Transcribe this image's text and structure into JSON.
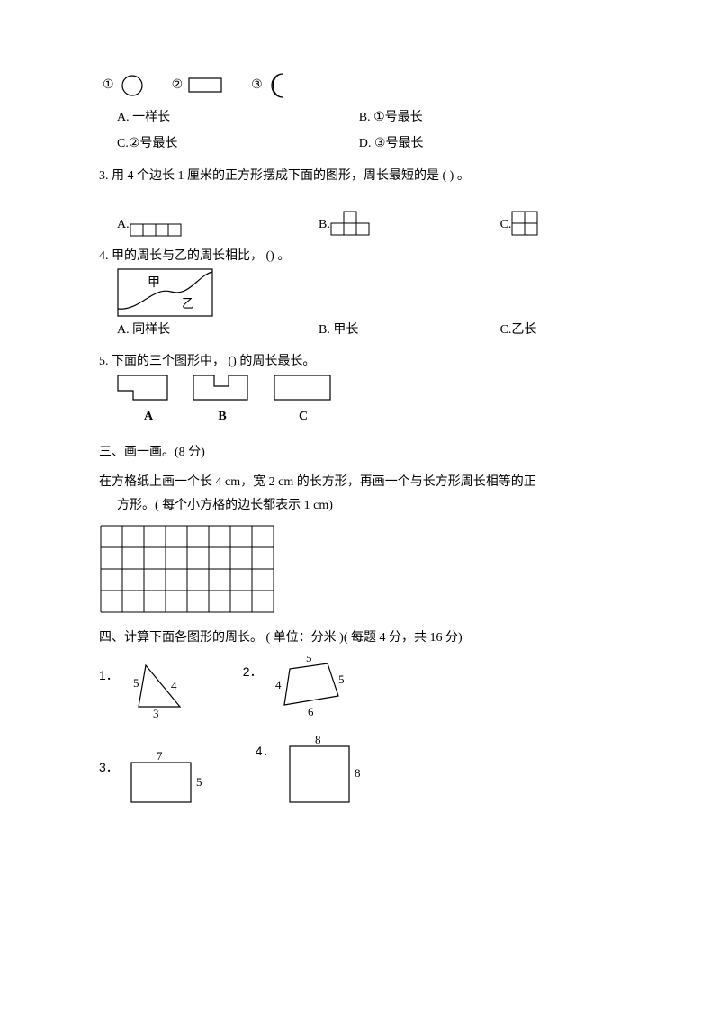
{
  "colors": {
    "ink": "#000000",
    "bg": "#ffffff"
  },
  "shapes_row": {
    "l1": "①",
    "l2": "②",
    "l3": "③"
  },
  "q2_opts": {
    "A": "A. 一样长",
    "B": "B. ①号最长",
    "C": "C.②号最长",
    "D": "D. ③号最长"
  },
  "q3": {
    "text": "3. 用 4 个边长 1 厘米的正方形摆成下面的图形，周长最短的是    (       ) 。",
    "A": "A.",
    "B": "B.",
    "C": "C."
  },
  "q4": {
    "text": "4. 甲的周长与乙的周长相比， () 。",
    "jia": "甲",
    "yi": "乙",
    "A": "A.  同样长",
    "B": "B. 甲长",
    "C": "C.乙长"
  },
  "q5": {
    "text": "5. 下面的三个图形中， () 的周长最长。",
    "A": "A",
    "B": "B",
    "C": "C"
  },
  "sec3": {
    "title": "三、画一画。(8 分)",
    "body1": "在方格纸上画一个长 4 cm，宽 2 cm 的长方形，再画一个与长方形周长相等的正",
    "body2": "方形。( 每个小方格的边长都表示 1 cm)",
    "grid": {
      "cols": 8,
      "rows": 4,
      "cell": 24
    }
  },
  "sec4": {
    "title": "四、计算下面各图形的周长。  ( 单位：分米 )( 每题 4 分，共 16 分)",
    "n1": "1．",
    "n2": "2．",
    "n3": "3．",
    "n4": "4．",
    "tri": {
      "a": "5",
      "b": "4",
      "c": "3"
    },
    "quad": {
      "t": "5",
      "r": "5",
      "b": "6",
      "l": "4"
    },
    "rect": {
      "w": "7",
      "h": "5"
    },
    "sq": {
      "w": "8",
      "h": "8"
    }
  }
}
